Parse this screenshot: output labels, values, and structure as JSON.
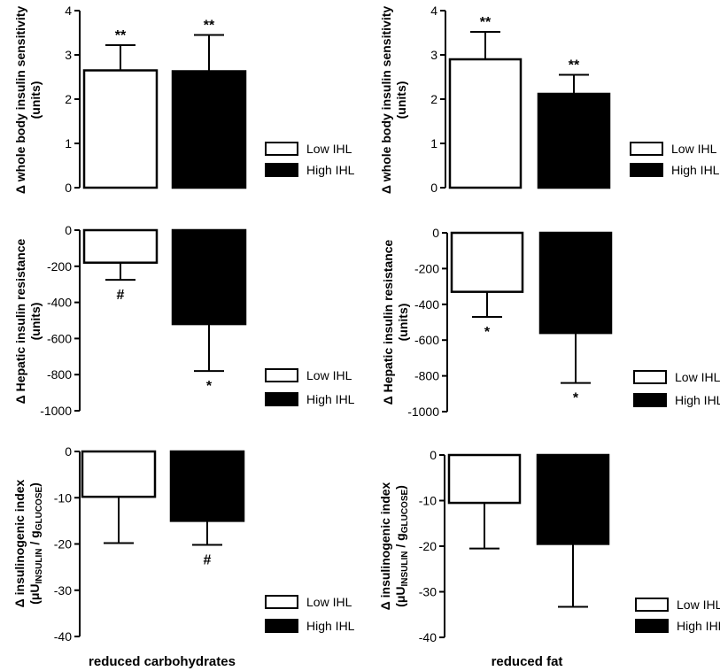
{
  "chart_data": [
    {
      "type": "bar",
      "xlabel": "reduced carbohydrates",
      "ylabel": "Δ whole body insulin sensitivity\n(units)",
      "ylim": [
        0,
        4
      ],
      "yticks": [
        0,
        1,
        2,
        3,
        4
      ],
      "grid": false,
      "legend": "right",
      "series": [
        {
          "name": "Low IHL",
          "value": 2.65,
          "error": 0.57,
          "annotation": "**"
        },
        {
          "name": "High IHL",
          "value": 2.63,
          "error": 0.82,
          "annotation": "**"
        }
      ]
    },
    {
      "type": "bar",
      "xlabel": "reduced fat",
      "ylabel": "Δ whole body insulin sensitivity\n(units)",
      "ylim": [
        0,
        4
      ],
      "yticks": [
        0,
        1,
        2,
        3,
        4
      ],
      "grid": false,
      "legend": "right",
      "series": [
        {
          "name": "Low IHL",
          "value": 2.9,
          "error": 0.62,
          "annotation": "**"
        },
        {
          "name": "High IHL",
          "value": 2.12,
          "error": 0.43,
          "annotation": "**"
        }
      ]
    },
    {
      "type": "bar",
      "xlabel": "reduced carbohydrates",
      "ylabel": "Δ Hepatic insulin resistance\n(units)",
      "ylim": [
        -1000,
        0
      ],
      "yticks": [
        0,
        -200,
        -400,
        -600,
        -800,
        -1000
      ],
      "grid": false,
      "legend": "right",
      "series": [
        {
          "name": "Low IHL",
          "value": -180,
          "error": 95,
          "annotation": "#"
        },
        {
          "name": "High IHL",
          "value": -520,
          "error": 260,
          "annotation": "*"
        }
      ]
    },
    {
      "type": "bar",
      "xlabel": "reduced fat",
      "ylabel": "Δ Hepatic insulin resistance\n(units)",
      "ylim": [
        -1000,
        0
      ],
      "yticks": [
        0,
        -200,
        -400,
        -600,
        -800,
        -1000
      ],
      "grid": false,
      "legend": "right",
      "series": [
        {
          "name": "Low IHL",
          "value": -330,
          "error": 140,
          "annotation": "*"
        },
        {
          "name": "High IHL",
          "value": -560,
          "error": 280,
          "annotation": "*"
        }
      ]
    },
    {
      "type": "bar",
      "xlabel": "reduced carbohydrates",
      "ylabel": "Δ insulinogenic index\n(μUINSULIN / gGLUCOSE)",
      "ylim": [
        -40,
        0
      ],
      "yticks": [
        0,
        -10,
        -20,
        -30,
        -40
      ],
      "grid": false,
      "legend": "right",
      "series": [
        {
          "name": "Low IHL",
          "value": -9.8,
          "error": 10,
          "annotation": ""
        },
        {
          "name": "High IHL",
          "value": -15,
          "error": 5.2,
          "annotation": "#"
        }
      ]
    },
    {
      "type": "bar",
      "xlabel": "reduced fat",
      "ylabel": "Δ insulinogenic index\n(μUINSULIN / gGLUCOSE)",
      "ylim": [
        -40,
        0
      ],
      "yticks": [
        0,
        -10,
        -20,
        -30,
        -40
      ],
      "grid": false,
      "legend": "right",
      "series": [
        {
          "name": "Low IHL",
          "value": -10.5,
          "error": 10,
          "annotation": ""
        },
        {
          "name": "High IHL",
          "value": -19.5,
          "error": 13.8,
          "annotation": ""
        }
      ]
    }
  ],
  "legend": {
    "low_label": "Low IHL",
    "high_label": "High IHL"
  },
  "captions": {
    "left": "reduced carbohydrates",
    "right": "reduced fat"
  },
  "ylabels": {
    "sensitivity": {
      "line1": "Δ whole body insulin sensitivity",
      "line2": "(units)"
    },
    "hepatic": {
      "line1": "Δ Hepatic insulin resistance",
      "line2": "(units)"
    },
    "insulinogenic": {
      "line1": "Δ insulinogenic index",
      "mu": "(μU",
      "sub1": "INSULIN",
      "mid": " / g",
      "sub2": "GLUCOSE",
      "close": ")"
    }
  },
  "colors": {
    "low_fill": "#ffffff",
    "high_fill": "#000000",
    "stroke": "#000000"
  }
}
